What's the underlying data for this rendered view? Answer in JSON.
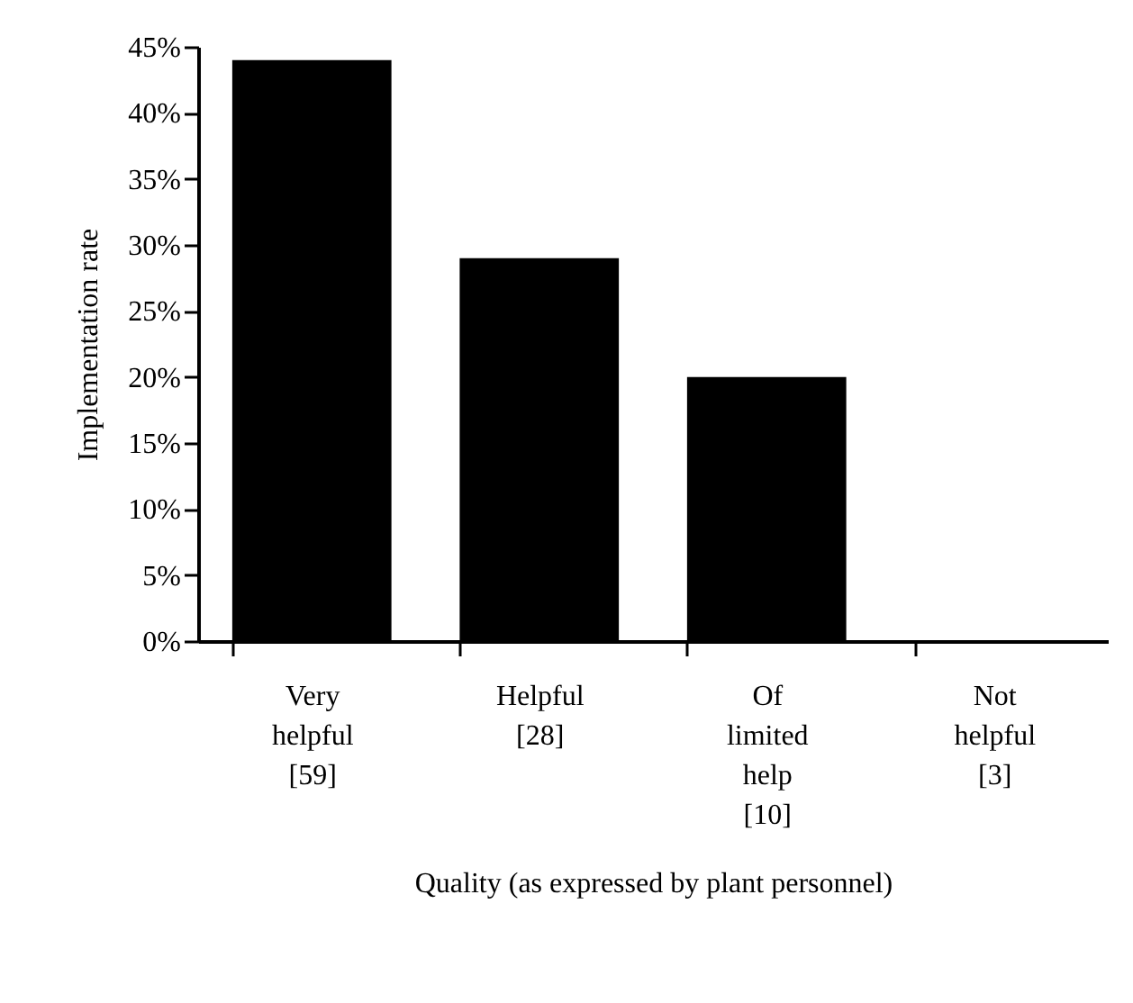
{
  "chart_data": {
    "type": "bar",
    "xlabel": "Quality (as expressed by plant personnel)",
    "ylabel": "Implementation rate",
    "categories": [
      "Very\nhelpful\n[59]",
      "Helpful\n[28]",
      "Of\nlimited\nhelp\n[10]",
      "Not\nhelpful\n[3]"
    ],
    "values": [
      44,
      29,
      20,
      0
    ],
    "color": "#000000",
    "ylim": [
      0,
      45
    ],
    "yticks": [
      {
        "value": 0,
        "label": "0%"
      },
      {
        "value": 5,
        "label": "5%"
      },
      {
        "value": 10,
        "label": "10%"
      },
      {
        "value": 15,
        "label": "15%"
      },
      {
        "value": 20,
        "label": "20%"
      },
      {
        "value": 25,
        "label": "25%"
      },
      {
        "value": 30,
        "label": "30%"
      },
      {
        "value": 35,
        "label": "35%"
      },
      {
        "value": 40,
        "label": "40%"
      },
      {
        "value": 45,
        "label": "45%"
      }
    ],
    "grid": false
  }
}
